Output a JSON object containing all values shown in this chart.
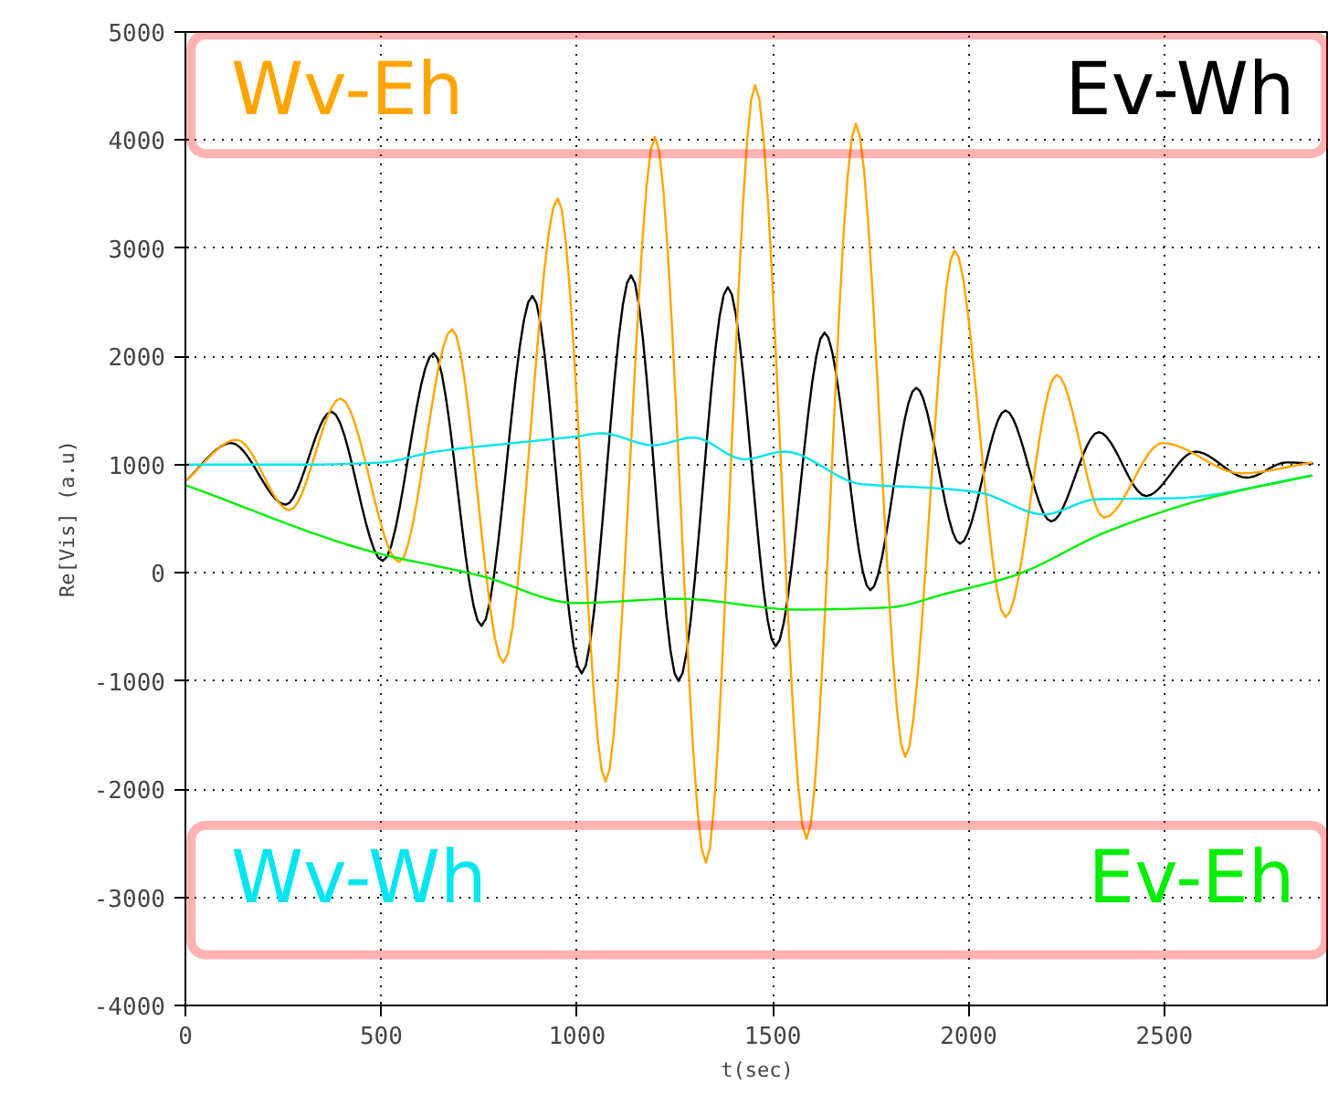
{
  "chart_data": {
    "type": "line",
    "xlabel": "t(sec)",
    "ylabel": "Re[Vis] (a.u)",
    "xlim": [
      0,
      2920
    ],
    "ylim": [
      -4000,
      5000
    ],
    "xticks": [
      0,
      500,
      1000,
      1500,
      2000,
      2500
    ],
    "yticks": [
      -4000,
      -3000,
      -2000,
      -1000,
      0,
      1000,
      2000,
      3000,
      4000,
      5000
    ],
    "grid": true,
    "line_style": "solid",
    "marker": "none",
    "series": [
      {
        "name": "Ev-Wh",
        "color": "#000000",
        "x": [
          0,
          117,
          256,
          373,
          504,
          634,
          756,
          886,
          1012,
          1138,
          1259,
          1385,
          1507,
          1632,
          1749,
          1866,
          1978,
          2094,
          2211,
          2332,
          2453,
          2579,
          2710,
          2812,
          2880
        ],
        "values": [
          850,
          1200,
          630,
          1490,
          110,
          2030,
          -490,
          2560,
          -930,
          2750,
          -1000,
          2640,
          -680,
          2220,
          -160,
          1710,
          270,
          1500,
          475,
          1300,
          710,
          1120,
          880,
          1020,
          1010
        ]
      },
      {
        "name": "Wv-Eh",
        "color": "#ffa500",
        "x": [
          0,
          131,
          266,
          396,
          546,
          681,
          812,
          951,
          1073,
          1199,
          1329,
          1455,
          1586,
          1712,
          1838,
          1964,
          2094,
          2225,
          2346,
          2495,
          2696,
          2878
        ],
        "values": [
          850,
          1230,
          580,
          1610,
          100,
          2250,
          -830,
          3460,
          -1930,
          4030,
          -2680,
          4510,
          -2460,
          4150,
          -1700,
          2980,
          -410,
          1830,
          510,
          1200,
          920,
          1020
        ]
      },
      {
        "name": "Wv-Wh",
        "color": "#00e5ee",
        "x": [
          0,
          300,
          500,
          639,
          840,
          998,
          1063,
          1194,
          1297,
          1427,
          1530,
          1726,
          1926,
          2029,
          2192,
          2327,
          2528,
          2878
        ],
        "values": [
          1000,
          1000,
          1020,
          1120,
          1200,
          1260,
          1290,
          1180,
          1250,
          1050,
          1120,
          820,
          780,
          740,
          540,
          680,
          690,
          900
        ]
      },
      {
        "name": "Ev-Eh",
        "color": "#00ee00",
        "x": [
          0,
          471,
          756,
          998,
          1259,
          1563,
          1796,
          1945,
          2113,
          2360,
          2612,
          2878
        ],
        "values": [
          810,
          200,
          -30,
          -280,
          -240,
          -340,
          -320,
          -190,
          -30,
          390,
          690,
          900
        ]
      }
    ]
  }
}
